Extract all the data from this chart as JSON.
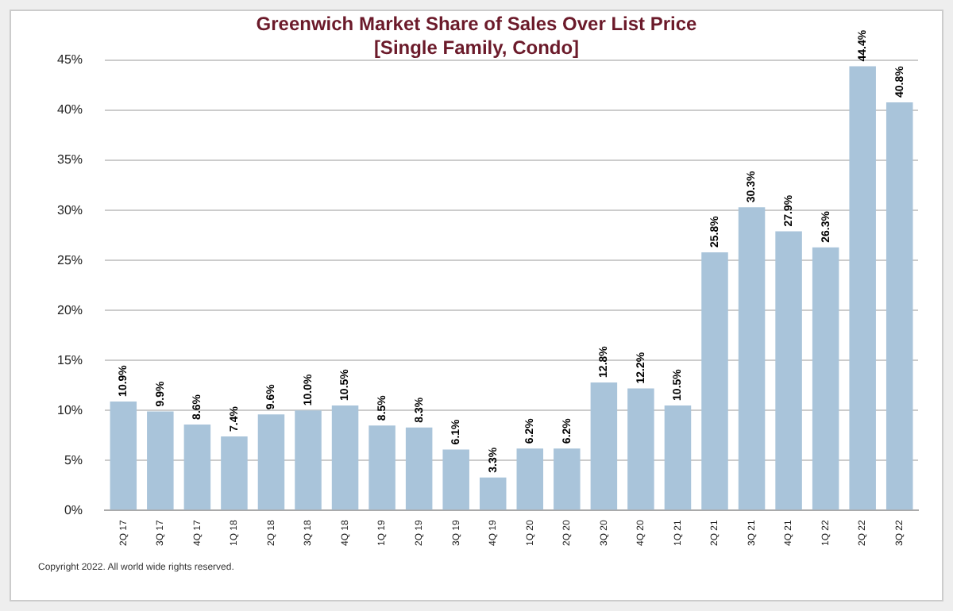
{
  "chart_data": {
    "type": "bar",
    "title": "Greenwich Market Share of Sales Over List Price",
    "subtitle": "[Single Family, Condo]",
    "categories": [
      "2Q 17",
      "3Q 17",
      "4Q 17",
      "1Q 18",
      "2Q 18",
      "3Q 18",
      "4Q 18",
      "1Q 19",
      "2Q 19",
      "3Q 19",
      "4Q 19",
      "1Q 20",
      "2Q 20",
      "3Q 20",
      "4Q 20",
      "1Q 21",
      "2Q 21",
      "3Q 21",
      "4Q 21",
      "1Q 22",
      "2Q 22",
      "3Q 22"
    ],
    "values": [
      10.9,
      9.9,
      8.6,
      7.4,
      9.6,
      10.0,
      10.5,
      8.5,
      8.3,
      6.1,
      3.3,
      6.2,
      6.2,
      12.8,
      12.2,
      10.5,
      25.8,
      30.3,
      27.9,
      26.3,
      44.4,
      40.8
    ],
    "value_labels": [
      "10.9%",
      "9.9%",
      "8.6%",
      "7.4%",
      "9.6%",
      "10.0%",
      "10.5%",
      "8.5%",
      "8.3%",
      "6.1%",
      "3.3%",
      "6.2%",
      "6.2%",
      "12.8%",
      "12.2%",
      "10.5%",
      "25.8%",
      "30.3%",
      "27.9%",
      "26.3%",
      "44.4%",
      "40.8%"
    ],
    "color": "#a9c4da",
    "ylim": [
      0,
      45
    ],
    "yticks": [
      {
        "value": 0,
        "label": "0%"
      },
      {
        "value": 5,
        "label": "5%"
      },
      {
        "value": 10,
        "label": "10%"
      },
      {
        "value": 15,
        "label": "15%"
      },
      {
        "value": 20,
        "label": "20%"
      },
      {
        "value": 25,
        "label": "25%"
      },
      {
        "value": 30,
        "label": "30%"
      },
      {
        "value": 35,
        "label": "35%"
      },
      {
        "value": 40,
        "label": "40%"
      },
      {
        "value": 45,
        "label": "45%"
      }
    ],
    "grid": "y",
    "legend": false,
    "annotations": [
      "Copyright 2022. All world wide rights reserved."
    ]
  }
}
